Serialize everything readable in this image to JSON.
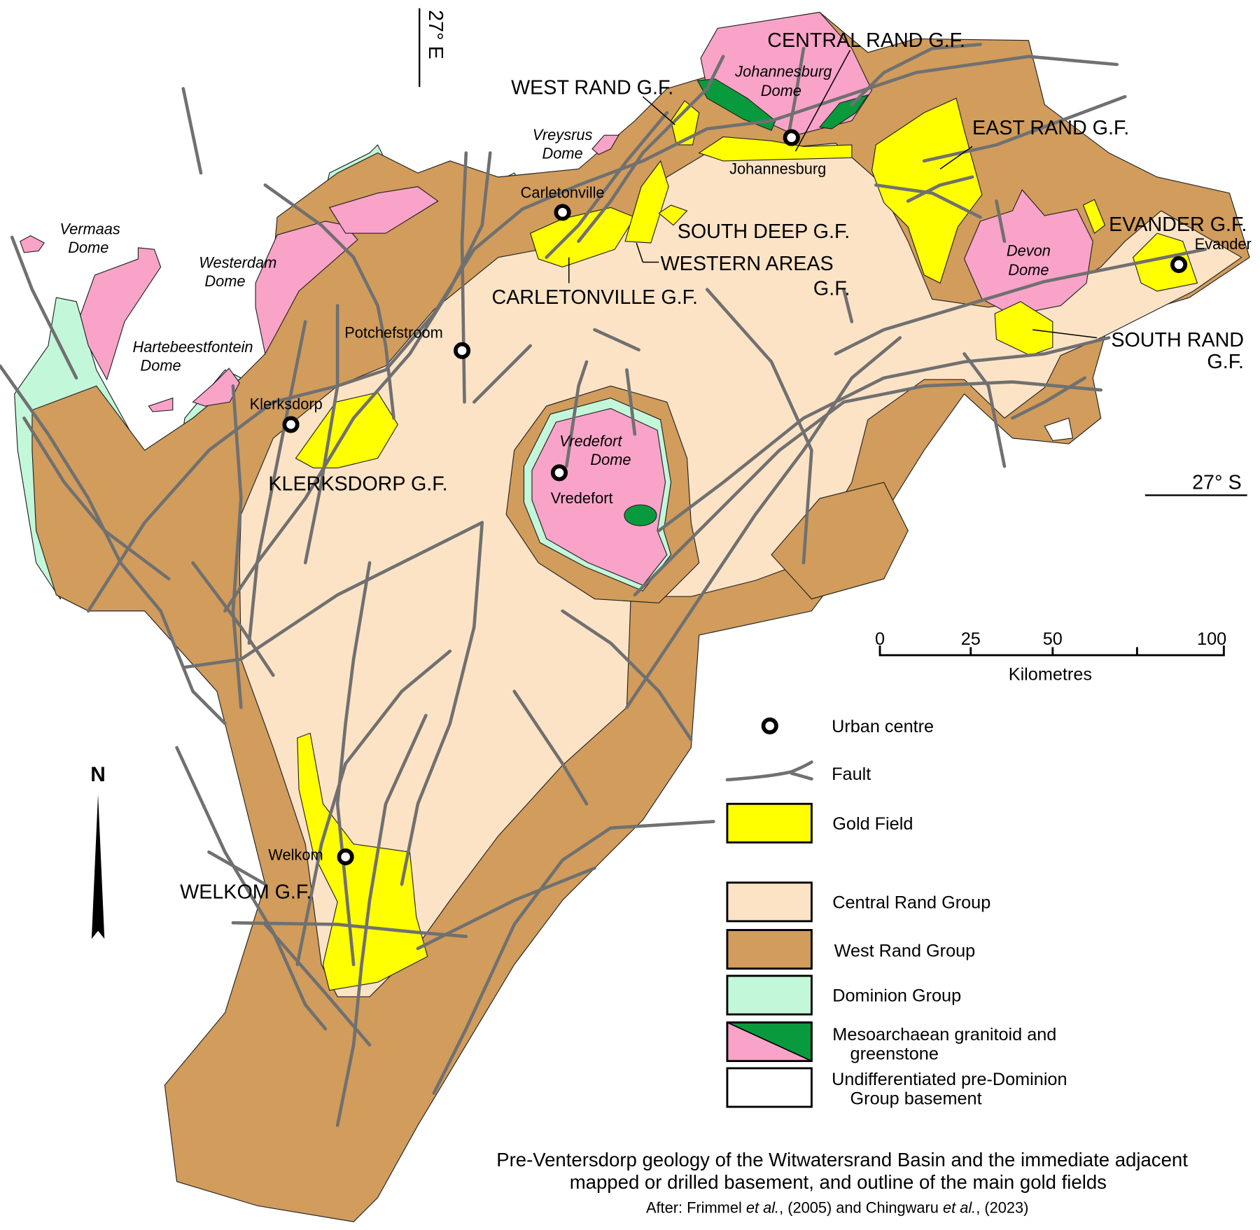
{
  "colors": {
    "central_rand": "#fde3c6",
    "west_rand": "#d19c5c",
    "dominion": "#c3f7da",
    "granitoid": "#f9a3c8",
    "greenstone": "#0a9a3e",
    "gold_field": "#ffff00",
    "fault": "#707070",
    "basement": "#ffffff"
  },
  "graticule": {
    "longitude": "27° E",
    "latitude": "27° S"
  },
  "north_label": "N",
  "gold_fields": {
    "central_rand": "CENTRAL RAND G.F.",
    "west_rand": "WEST RAND G.F.",
    "east_rand": "EAST RAND G.F.",
    "evander": "EVANDER G.F.",
    "south_deep": "SOUTH DEEP G.F.",
    "western_areas_1": "WESTERN AREAS",
    "western_areas_2": "G.F.",
    "carletonville": "CARLETONVILLE G.F.",
    "south_rand_1": "SOUTH RAND",
    "south_rand_2": "G.F.",
    "klerksdorp": "KLERKSDORP G.F.",
    "welkom": "WELKOM G.F."
  },
  "domes": {
    "johannesburg_1": "Johannesburg",
    "johannesburg_2": "Dome",
    "vreysrus_1": "Vreysrus",
    "vreysrus_2": "Dome",
    "vermaas_1": "Vermaas",
    "vermaas_2": "Dome",
    "westerdam_1": "Westerdam",
    "westerdam_2": "Dome",
    "hartebeestfontein_1": "Hartebeestfontein",
    "hartebeestfontein_2": "Dome",
    "vredefort_1": "Vredefort",
    "vredefort_2": "Dome",
    "devon_1": "Devon",
    "devon_2": "Dome"
  },
  "cities": {
    "johannesburg": "Johannesburg",
    "carletonville": "Carletonville",
    "potchefstroom": "Potchefstroom",
    "klerksdorp": "Klerksdorp",
    "vredefort": "Vredefort",
    "welkom": "Welkom",
    "evander": "Evander"
  },
  "scale_bar": {
    "ticks": [
      "0",
      "25",
      "50",
      "100"
    ],
    "unit": "Kilometres"
  },
  "legend": {
    "urban_centre": "Urban centre",
    "fault": "Fault",
    "gold_field": "Gold Field",
    "central_rand": "Central Rand Group",
    "west_rand": "West Rand Group",
    "dominion": "Dominion Group",
    "granitoid_1": "Mesoarchaean granitoid and",
    "granitoid_2": "greenstone",
    "basement_1": "Undifferentiated pre-Dominion",
    "basement_2": "Group basement"
  },
  "caption": {
    "line1": "Pre-Ventersdorp geology of the Witwatersrand Basin and the immediate adjacent",
    "line2": "mapped or drilled basement, and outline of the main gold fields",
    "line3_a": "After: Frimmel ",
    "line3_b": "et al.",
    "line3_c": ", (2005) and Chingwaru ",
    "line3_d": "et al.",
    "line3_e": ", (2023)"
  }
}
